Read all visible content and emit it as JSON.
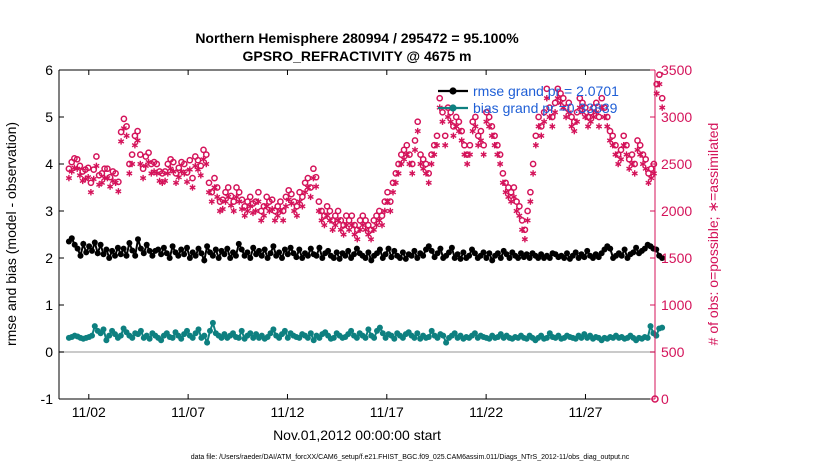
{
  "chart_data": {
    "type": "line",
    "title_line1": "Northern Hemisphere 280994 / 295472 = 95.100%",
    "title_line2": "GPSRO_REFRACTIVITY @ 4675 m",
    "xlabel": "Nov.01,2012 00:00:00 start",
    "ylabel_left": "rmse and bias (model - observation)",
    "ylabel_right": "# of obs: o=possible; ∗=assimilated",
    "footer": "data file: /Users/raeder/DAI/ATM_forcXX/CAM6_setup/f.e21.FHIST_BGC.f09_025.CAM6assim.011/Diags_NTrS_2012-11/obs_diag_output.nc",
    "xlim": [
      0.5,
      30.5
    ],
    "ylim_left": [
      -1,
      6
    ],
    "ylim_right": [
      0,
      3500
    ],
    "xtick_values": [
      2,
      7,
      12,
      17,
      22,
      27
    ],
    "xtick_labels": [
      "11/02",
      "11/07",
      "11/12",
      "11/17",
      "11/22",
      "11/27"
    ],
    "ytick_left": [
      "-1",
      "0",
      "1",
      "2",
      "3",
      "4",
      "5",
      "6"
    ],
    "ytick_right": [
      "0",
      "500",
      "1000",
      "1500",
      "2000",
      "2500",
      "3000",
      "3500"
    ],
    "legend": [
      {
        "name": "rmse grand pr = 2.0701",
        "color": "#000000"
      },
      {
        "name": "bias grand pr =0.33839",
        "color": "#0e8080"
      }
    ],
    "legend_text_color": "#1f5fd6",
    "colors": {
      "rmse": "#000000",
      "bias": "#0e8080",
      "nobs": "#d4135a",
      "zero": "#b8b8b8"
    },
    "series": [
      {
        "name": "rmse",
        "color": "#000000",
        "values": [
          2.35,
          2.42,
          2.28,
          2.2,
          2.05,
          2.3,
          2.12,
          2.25,
          2.15,
          2.33,
          2.1,
          2.28,
          2.08,
          2.18,
          2.0,
          2.15,
          2.05,
          2.22,
          2.08,
          2.2,
          2.05,
          2.32,
          2.16,
          2.05,
          2.4,
          2.2,
          2.1,
          2.28,
          2.15,
          2.05,
          2.15,
          2.18,
          2.08,
          2.22,
          2.1,
          2.0,
          2.25,
          2.12,
          2.05,
          2.18,
          2.08,
          2.22,
          2.0,
          2.12,
          2.05,
          2.2,
          2.1,
          1.95,
          2.25,
          2.12,
          2.05,
          2.18,
          2.0,
          2.15,
          2.08,
          2.2,
          2.0,
          2.12,
          2.05,
          2.3,
          2.18,
          2.05,
          2.12,
          2.0,
          2.22,
          2.08,
          2.15,
          2.05,
          2.18,
          2.0,
          2.1,
          2.25,
          2.05,
          2.12,
          2.0,
          2.18,
          2.08,
          2.22,
          2.1,
          2.02,
          2.18,
          2.0,
          2.1,
          2.05,
          2.2,
          2.08,
          2.05,
          2.22,
          2.0,
          2.1,
          2.15,
          2.05,
          2.0,
          2.12,
          1.98,
          2.1,
          2.05,
          2.15,
          2.0,
          2.08,
          2.2,
          2.1,
          2.05,
          2.0,
          2.12,
          1.95,
          2.05,
          2.1,
          2.18,
          2.0,
          2.08,
          2.2,
          2.02,
          2.15,
          2.05,
          2.0,
          2.12,
          1.98,
          2.08,
          2.05,
          2.15,
          2.0,
          2.1,
          2.05,
          2.18,
          2.25,
          2.15,
          2.02,
          2.1,
          2.2,
          2.0,
          2.05,
          2.12,
          2.22,
          2.0,
          2.08,
          1.98,
          2.12,
          2.0,
          2.05,
          2.18,
          2.1,
          2.0,
          2.05,
          2.12,
          2.0,
          2.1,
          1.95,
          2.05,
          2.1,
          2.0,
          2.15,
          2.08,
          2.0,
          2.12,
          2.05,
          2.0,
          2.1,
          2.02,
          2.08,
          2.0,
          2.1,
          2.05,
          2.0,
          2.08,
          2.0,
          2.05,
          2.0,
          2.1,
          2.08,
          2.02,
          2.05,
          2.0,
          2.1,
          1.98,
          2.05,
          2.12,
          2.0,
          2.08,
          2.02,
          2.15,
          2.05,
          2.0,
          2.08,
          2.02,
          2.1,
          2.18,
          2.25,
          2.2,
          2.0,
          2.05,
          2.1,
          2.05,
          2.18,
          2.0,
          2.08,
          2.12,
          2.22,
          2.1,
          2.15,
          2.2,
          2.28,
          2.25,
          2.2,
          2.18,
          2.05,
          2.0
        ]
      },
      {
        "name": "bias",
        "color": "#0e8080",
        "values": [
          0.3,
          0.32,
          0.35,
          0.33,
          0.3,
          0.28,
          0.3,
          0.32,
          0.35,
          0.55,
          0.45,
          0.4,
          0.48,
          0.25,
          0.35,
          0.45,
          0.38,
          0.3,
          0.35,
          0.5,
          0.42,
          0.35,
          0.3,
          0.4,
          0.38,
          0.45,
          0.3,
          0.35,
          0.28,
          0.4,
          0.35,
          0.3,
          0.25,
          0.35,
          0.4,
          0.32,
          0.3,
          0.42,
          0.35,
          0.28,
          0.38,
          0.45,
          0.35,
          0.3,
          0.4,
          0.48,
          0.3,
          0.35,
          0.2,
          0.45,
          0.62,
          0.4,
          0.35,
          0.3,
          0.38,
          0.3,
          0.35,
          0.4,
          0.32,
          0.3,
          0.45,
          0.28,
          0.35,
          0.4,
          0.3,
          0.38,
          0.3,
          0.35,
          0.28,
          0.32,
          0.4,
          0.48,
          0.35,
          0.3,
          0.38,
          0.45,
          0.3,
          0.4,
          0.35,
          0.32,
          0.3,
          0.38,
          0.35,
          0.3,
          0.4,
          0.25,
          0.35,
          0.3,
          0.38,
          0.42,
          0.35,
          0.28,
          0.3,
          0.4,
          0.35,
          0.3,
          0.32,
          0.38,
          0.45,
          0.35,
          0.3,
          0.4,
          0.35,
          0.3,
          0.48,
          0.35,
          0.3,
          0.45,
          0.52,
          0.4,
          0.3,
          0.38,
          0.35,
          0.28,
          0.4,
          0.35,
          0.3,
          0.38,
          0.42,
          0.35,
          0.3,
          0.4,
          0.28,
          0.35,
          0.3,
          0.32,
          0.45,
          0.35,
          0.3,
          0.38,
          0.35,
          0.2,
          0.3,
          0.35,
          0.4,
          0.3,
          0.35,
          0.28,
          0.32,
          0.3,
          0.35,
          0.4,
          0.3,
          0.35,
          0.32,
          0.3,
          0.28,
          0.35,
          0.3,
          0.32,
          0.38,
          0.3,
          0.35,
          0.3,
          0.28,
          0.32,
          0.3,
          0.35,
          0.3,
          0.28,
          0.35,
          0.3,
          0.25,
          0.3,
          0.35,
          0.28,
          0.3,
          0.4,
          0.32,
          0.3,
          0.35,
          0.28,
          0.3,
          0.35,
          0.32,
          0.3,
          0.28,
          0.35,
          0.3,
          0.38,
          0.3,
          0.35,
          0.28,
          0.32,
          0.3,
          0.25,
          0.3,
          0.28,
          0.32,
          0.3,
          0.35,
          0.3,
          0.32,
          0.28,
          0.3,
          0.35,
          0.3,
          0.25,
          0.3,
          0.28,
          0.32,
          0.3,
          0.55,
          0.4,
          0.35,
          0.5,
          0.52
        ]
      },
      {
        "name": "obs_possible",
        "color": "#d4135a",
        "marker": "o",
        "values": [
          2450,
          2520,
          2560,
          2550,
          2480,
          2420,
          2440,
          2460,
          2300,
          2440,
          2580,
          2380,
          2400,
          2450,
          2450,
          2360,
          2420,
          2400,
          2310,
          2840,
          2980,
          2900,
          2500,
          2600,
          2800,
          2850,
          2600,
          2450,
          2580,
          2620,
          2500,
          2520,
          2500,
          2420,
          2400,
          2420,
          2500,
          2550,
          2520,
          2400,
          2460,
          2520,
          2500,
          2410,
          2540,
          2350,
          2580,
          2540,
          2480,
          2650,
          2600,
          2300,
          2200,
          2350,
          2250,
          2100,
          2120,
          2200,
          2250,
          2160,
          2100,
          2250,
          2200,
          2120,
          2050,
          2100,
          2150,
          2080,
          2100,
          2200,
          2000,
          2050,
          2150,
          2100,
          2120,
          2000,
          2050,
          2100,
          2000,
          2150,
          2220,
          2180,
          2100,
          2050,
          2200,
          2150,
          2300,
          2350,
          2250,
          2450,
          2360,
          2100,
          2000,
          1950,
          2050,
          2000,
          1900,
          1950,
          2000,
          1900,
          1850,
          1950,
          1900,
          1950,
          1850,
          1800,
          1900,
          1950,
          1900,
          1850,
          1800,
          1900,
          1950,
          2000,
          1950,
          2100,
          2200,
          2100,
          2300,
          2400,
          2500,
          2600,
          2650,
          2700,
          2600,
          2500,
          2750,
          2950,
          2600,
          2550,
          2500,
          2400,
          2600,
          2700,
          2800,
          3200,
          3050,
          2800,
          3100,
          3050,
          2900,
          3000,
          2950,
          2850,
          2700,
          2600,
          2700,
          2950,
          3000,
          2800,
          2850,
          2700,
          3050,
          3000,
          2900,
          2800,
          2700,
          2600,
          2400,
          2300,
          2250,
          2200,
          2250,
          2100,
          2050,
          1900,
          1800,
          2000,
          2200,
          2500,
          2800,
          3000,
          2900,
          3050,
          3300,
          3100,
          3000,
          3150,
          3300,
          3250,
          3200,
          3100,
          3150,
          3000,
          2950,
          3050,
          3200,
          3150,
          3100,
          3000,
          3050,
          3100,
          3150,
          3000,
          3200,
          3100,
          3000,
          2850,
          2800,
          2700,
          2600,
          2650,
          2800,
          2700,
          2550,
          2600,
          2500,
          2750,
          2700,
          2600,
          2550,
          2400,
          2450,
          2500,
          3350,
          3450,
          3200
        ]
      },
      {
        "name": "obs_assimilated",
        "color": "#d4135a",
        "marker": "*",
        "values": [
          2350,
          2420,
          2460,
          2450,
          2380,
          2320,
          2340,
          2360,
          2200,
          2340,
          2480,
          2280,
          2300,
          2350,
          2350,
          2260,
          2320,
          2300,
          2210,
          2740,
          2880,
          2800,
          2400,
          2500,
          2700,
          2750,
          2500,
          2350,
          2480,
          2520,
          2400,
          2420,
          2400,
          2320,
          2300,
          2320,
          2400,
          2450,
          2420,
          2300,
          2360,
          2420,
          2400,
          2310,
          2440,
          2250,
          2480,
          2440,
          2380,
          2550,
          2500,
          2200,
          2100,
          2250,
          2150,
          2000,
          2020,
          2100,
          2150,
          2060,
          2000,
          2150,
          2100,
          2020,
          1950,
          2000,
          2050,
          1980,
          2000,
          2100,
          1900,
          1950,
          2050,
          2000,
          2020,
          1900,
          1950,
          2000,
          1900,
          2050,
          2120,
          2080,
          2000,
          1950,
          2100,
          2050,
          2200,
          2250,
          2150,
          2350,
          2260,
          2000,
          1900,
          1850,
          1950,
          1900,
          1800,
          1850,
          1900,
          1800,
          1750,
          1850,
          1800,
          1850,
          1750,
          1700,
          1800,
          1850,
          1800,
          1750,
          1700,
          1800,
          1850,
          1900,
          1850,
          2000,
          2100,
          2000,
          2200,
          2300,
          2400,
          2500,
          2550,
          2600,
          2500,
          2400,
          2650,
          2850,
          2500,
          2450,
          2400,
          2300,
          2500,
          2600,
          2700,
          3100,
          2950,
          2700,
          3000,
          2950,
          2800,
          2900,
          2850,
          2750,
          2600,
          2500,
          2600,
          2850,
          2900,
          2700,
          2750,
          2600,
          2950,
          2900,
          2800,
          2700,
          2600,
          2500,
          2300,
          2200,
          2150,
          2100,
          2150,
          2000,
          1950,
          1800,
          1700,
          1900,
          2100,
          2400,
          2700,
          2900,
          2800,
          2950,
          3200,
          3000,
          2900,
          3050,
          3200,
          3150,
          3100,
          3000,
          3050,
          2900,
          2850,
          2950,
          3100,
          3050,
          3000,
          2900,
          2950,
          3000,
          3050,
          2900,
          3100,
          3000,
          2900,
          2750,
          2700,
          2600,
          2500,
          2550,
          2700,
          2600,
          2450,
          2500,
          2400,
          2650,
          2600,
          2500,
          2450,
          2300,
          2350,
          2400,
          3250,
          3350,
          3100
        ]
      }
    ]
  }
}
